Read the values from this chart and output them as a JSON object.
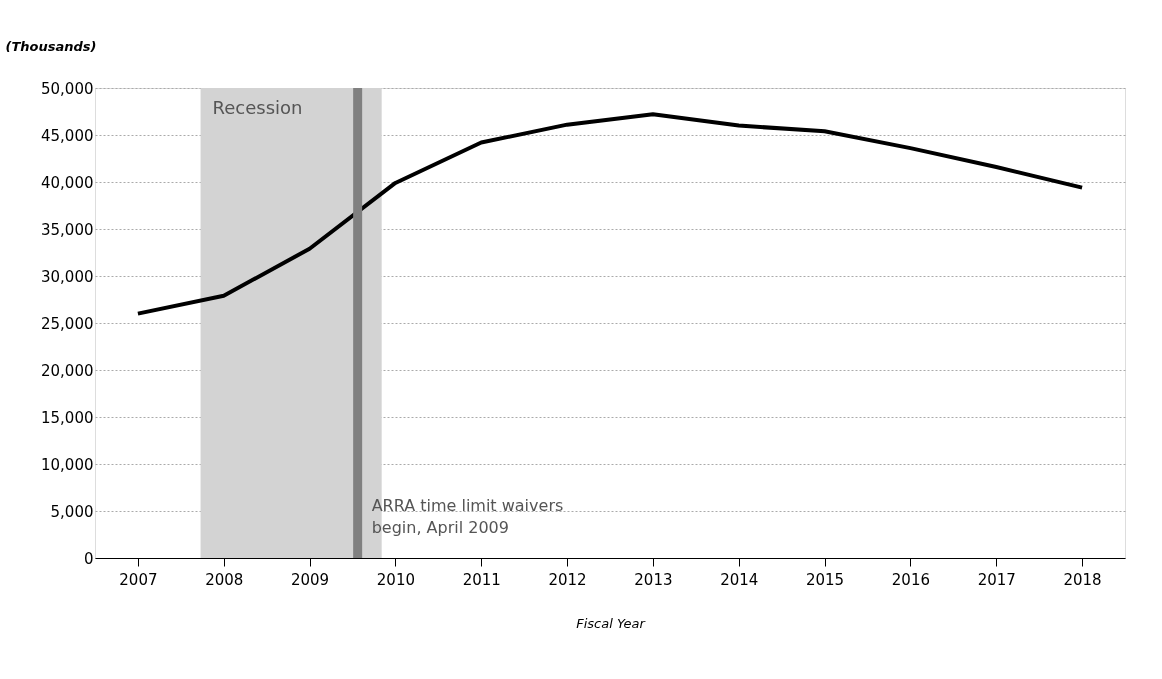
{
  "chart_data": {
    "type": "line",
    "ylabel": "(Thousands)",
    "xlabel": "Fiscal Year",
    "x": [
      2007,
      2008,
      2009,
      2010,
      2011,
      2012,
      2013,
      2014,
      2015,
      2016,
      2017,
      2018
    ],
    "series": [
      {
        "color": "#000000",
        "values": [
          26000,
          27900,
          32900,
          39900,
          44200,
          46100,
          47200,
          46000,
          45400,
          43600,
          41600,
          39400
        ]
      }
    ],
    "xlim": [
      2006.5,
      2018.5
    ],
    "xticks": [
      2007,
      2008,
      2009,
      2010,
      2011,
      2012,
      2013,
      2014,
      2015,
      2016,
      2017,
      2018
    ],
    "ylim": [
      0,
      50000
    ],
    "yticks": [
      {
        "value": 0,
        "label": "0"
      },
      {
        "value": 5000,
        "label": "5,000"
      },
      {
        "value": 10000,
        "label": "10,000"
      },
      {
        "value": 15000,
        "label": "15,000"
      },
      {
        "value": 20000,
        "label": "20,000"
      },
      {
        "value": 25000,
        "label": "25,000"
      },
      {
        "value": 30000,
        "label": "30,000"
      },
      {
        "value": 35000,
        "label": "35,000"
      },
      {
        "value": 40000,
        "label": "40,000"
      },
      {
        "value": 45000,
        "label": "45,000"
      },
      {
        "value": 50000,
        "label": "50,000"
      }
    ],
    "bands": [
      {
        "axis": "x",
        "from": 2007.73,
        "to": 2009.84,
        "label": "Recession",
        "color": "#d3d3d3"
      }
    ],
    "ref_lines": [
      {
        "axis": "x",
        "value": 2009.56,
        "label": "ARRA time limit waivers\nbegin, April 2009",
        "color": "#808080"
      }
    ],
    "grid": "y",
    "marker": "none",
    "line_style": "solid"
  }
}
